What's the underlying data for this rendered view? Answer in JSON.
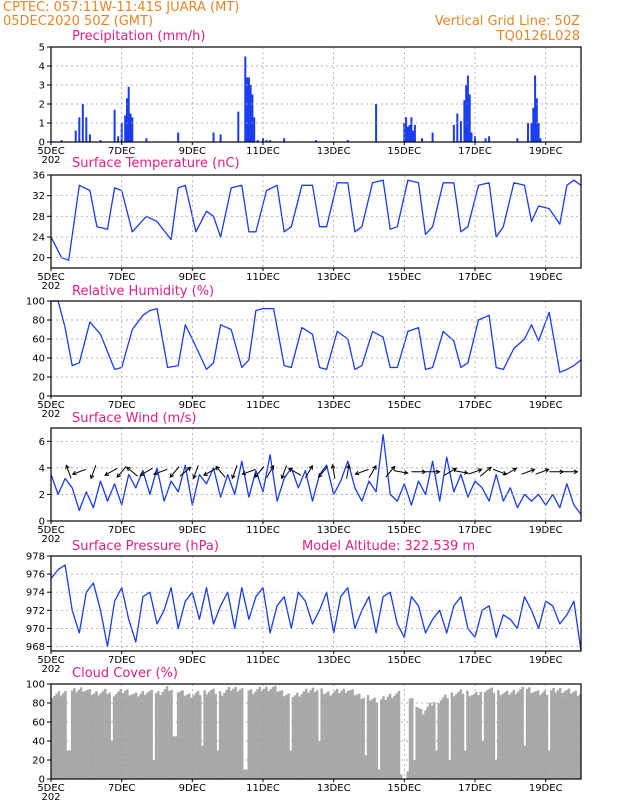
{
  "header": {
    "line1": "CPTEC:  057:11W-11:41S  JUARA (MT)",
    "line2": "05DEC2020 50Z (GMT)",
    "right1": "Vertical Grid Line: 50Z",
    "right2": "TQ0126L028"
  },
  "colors": {
    "header": "#e8862a",
    "title": "#e0208a",
    "series": "#1a3cf0",
    "cloud": "#a9a9a9",
    "grid": "#9a9a9a"
  },
  "x_axis": {
    "start_day": 5,
    "end_day": 20,
    "tick_labels": [
      "5DEC",
      "7DEC",
      "9DEC",
      "11DEC",
      "13DEC",
      "15DEC",
      "17DEC",
      "19DEC"
    ],
    "tick_days": [
      5,
      7,
      9,
      11,
      13,
      15,
      17,
      19
    ],
    "first_tick_sub": "202"
  },
  "chart_data": [
    {
      "name": "precip",
      "type": "bar",
      "title": "Precipitation (mm/h)",
      "ylim": [
        0,
        5
      ],
      "yticks": [
        "0",
        "1",
        "2",
        "3",
        "4",
        "5"
      ],
      "x": [
        5.3,
        5.7,
        5.8,
        5.9,
        6.0,
        6.1,
        6.4,
        6.8,
        6.9,
        7.0,
        7.1,
        7.15,
        7.2,
        7.25,
        7.3,
        7.7,
        8.6,
        9.6,
        9.8,
        10.3,
        10.5,
        10.55,
        10.6,
        10.65,
        10.7,
        10.75,
        10.85,
        11.0,
        11.1,
        11.2,
        11.6,
        12.5,
        13.4,
        14.2,
        15.0,
        15.05,
        15.1,
        15.15,
        15.2,
        15.25,
        15.3,
        15.5,
        15.8,
        16.4,
        16.5,
        16.6,
        16.7,
        16.75,
        16.8,
        16.85,
        16.9,
        17.0,
        17.3,
        17.4,
        18.2,
        18.5,
        18.6,
        18.65,
        18.7,
        18.75,
        18.8,
        18.85
      ],
      "values": [
        0.1,
        0.6,
        1.3,
        2.0,
        1.3,
        0.4,
        0.1,
        1.7,
        0.3,
        1.0,
        1.4,
        2.3,
        2.9,
        1.5,
        1.3,
        0.2,
        0.5,
        0.5,
        0.4,
        1.6,
        4.5,
        3.4,
        3.4,
        3.0,
        2.5,
        1.3,
        0.1,
        0.2,
        0.1,
        0.1,
        0.2,
        0.1,
        0.1,
        2.0,
        1.0,
        1.3,
        0.8,
        0.9,
        1.3,
        0.6,
        0.9,
        0.2,
        0.5,
        0.9,
        1.5,
        1.1,
        2.2,
        3.0,
        3.5,
        2.5,
        0.5,
        0.3,
        0.2,
        0.3,
        0.2,
        1.0,
        1.0,
        1.8,
        3.5,
        2.3,
        1.0,
        0.2
      ]
    },
    {
      "name": "temp",
      "type": "line",
      "title": "Surface Temperature (nC)",
      "ylim": [
        18,
        36
      ],
      "yticks": [
        "20",
        "24",
        "28",
        "32",
        "36"
      ],
      "x": [
        5.0,
        5.3,
        5.5,
        5.8,
        6.1,
        6.3,
        6.6,
        6.8,
        7.0,
        7.3,
        7.7,
        8.0,
        8.4,
        8.6,
        8.8,
        9.1,
        9.4,
        9.6,
        9.8,
        10.1,
        10.4,
        10.6,
        10.8,
        11.1,
        11.4,
        11.6,
        11.8,
        12.1,
        12.4,
        12.6,
        12.8,
        13.1,
        13.4,
        13.6,
        13.8,
        14.1,
        14.4,
        14.6,
        14.8,
        15.1,
        15.4,
        15.6,
        15.8,
        16.1,
        16.4,
        16.6,
        16.8,
        17.1,
        17.4,
        17.6,
        17.8,
        18.1,
        18.4,
        18.6,
        18.8,
        19.1,
        19.4,
        19.6,
        19.8,
        20.0
      ],
      "values": [
        24,
        20,
        19.5,
        34,
        33,
        26,
        25.5,
        33.5,
        33,
        25,
        28,
        27,
        23.5,
        33.5,
        34,
        25,
        29,
        28,
        24,
        33.5,
        34,
        25,
        25,
        33,
        34,
        25,
        26,
        34,
        34,
        26,
        26,
        34.5,
        34.5,
        25,
        26,
        34.5,
        35,
        25.5,
        26,
        35,
        34.5,
        24.5,
        26,
        34.5,
        34.5,
        25,
        26,
        34,
        34.5,
        24,
        26,
        34.5,
        34,
        27,
        30,
        29.5,
        26.5,
        34,
        35,
        34
      ]
    },
    {
      "name": "rh",
      "type": "line",
      "title": "Relative Humidity (%)",
      "ylim": [
        0,
        100
      ],
      "yticks": [
        "0",
        "20",
        "40",
        "60",
        "80",
        "100"
      ],
      "x": [
        5.0,
        5.2,
        5.4,
        5.6,
        5.8,
        6.1,
        6.4,
        6.8,
        7.0,
        7.3,
        7.6,
        7.8,
        8.0,
        8.3,
        8.6,
        8.8,
        9.0,
        9.4,
        9.6,
        9.8,
        10.1,
        10.4,
        10.6,
        10.8,
        11.0,
        11.3,
        11.6,
        11.8,
        12.1,
        12.4,
        12.6,
        12.8,
        13.1,
        13.4,
        13.6,
        13.8,
        14.1,
        14.4,
        14.6,
        14.8,
        15.1,
        15.4,
        15.6,
        15.8,
        16.1,
        16.4,
        16.6,
        16.8,
        17.1,
        17.4,
        17.6,
        17.8,
        18.1,
        18.4,
        18.6,
        18.8,
        19.1,
        19.4,
        19.6,
        19.8,
        20.0
      ],
      "values": [
        100,
        100,
        72,
        32,
        35,
        78,
        65,
        28,
        30,
        70,
        85,
        90,
        92,
        30,
        32,
        75,
        60,
        28,
        35,
        75,
        70,
        30,
        38,
        90,
        92,
        92,
        32,
        30,
        72,
        65,
        30,
        28,
        68,
        60,
        28,
        32,
        68,
        62,
        30,
        30,
        68,
        72,
        28,
        30,
        68,
        58,
        30,
        35,
        80,
        85,
        30,
        28,
        50,
        60,
        75,
        58,
        88,
        25,
        28,
        32,
        38
      ]
    },
    {
      "name": "wind",
      "type": "line",
      "title": "Surface Wind (m/s)",
      "ylim": [
        0,
        7
      ],
      "yticks": [
        "0",
        "2",
        "4",
        "6"
      ],
      "x": [
        5.0,
        5.2,
        5.4,
        5.6,
        5.8,
        6.0,
        6.2,
        6.4,
        6.6,
        6.8,
        7.0,
        7.2,
        7.4,
        7.6,
        7.8,
        8.0,
        8.2,
        8.4,
        8.6,
        8.8,
        9.0,
        9.2,
        9.4,
        9.6,
        9.8,
        10.0,
        10.2,
        10.4,
        10.6,
        10.8,
        11.0,
        11.2,
        11.4,
        11.6,
        11.8,
        12.0,
        12.2,
        12.4,
        12.6,
        12.8,
        13.0,
        13.2,
        13.4,
        13.6,
        13.8,
        14.0,
        14.2,
        14.4,
        14.6,
        14.8,
        15.0,
        15.2,
        15.4,
        15.6,
        15.8,
        16.0,
        16.2,
        16.4,
        16.6,
        16.8,
        17.0,
        17.2,
        17.4,
        17.6,
        17.8,
        18.0,
        18.2,
        18.4,
        18.6,
        18.8,
        19.0,
        19.2,
        19.4,
        19.6,
        19.8,
        20.0
      ],
      "values": [
        3.5,
        2.0,
        3.2,
        2.5,
        0.8,
        2.2,
        1.0,
        3.0,
        1.5,
        2.8,
        1.2,
        3.5,
        2.5,
        3.8,
        2.0,
        4.0,
        1.5,
        3.0,
        2.2,
        4.2,
        1.2,
        3.5,
        2.8,
        4.0,
        1.8,
        3.5,
        2.0,
        4.5,
        1.8,
        3.8,
        2.2,
        5.0,
        1.5,
        3.2,
        4.0,
        2.5,
        3.8,
        1.5,
        3.5,
        4.2,
        2.0,
        3.0,
        4.5,
        2.5,
        1.5,
        3.0,
        2.2,
        6.5,
        2.0,
        1.5,
        2.8,
        1.2,
        3.0,
        2.0,
        4.5,
        1.5,
        4.8,
        2.2,
        3.5,
        1.8,
        3.0,
        2.5,
        1.5,
        3.5,
        1.5,
        2.5,
        1.0,
        2.0,
        1.5,
        2.0,
        1.2,
        2.0,
        1.0,
        2.8,
        1.2,
        0.5
      ],
      "arrows_x": [
        5.5,
        5.8,
        6.2,
        6.7,
        7.0,
        7.3,
        7.7,
        8.1,
        8.5,
        8.8,
        9.1,
        9.5,
        9.8,
        10.2,
        10.6,
        10.9,
        11.2,
        11.6,
        11.9,
        12.3,
        12.7,
        13.0,
        13.4,
        13.8,
        14.1,
        14.6,
        14.9,
        15.4,
        15.8,
        16.3,
        16.6,
        17.0,
        17.3,
        17.7,
        18.0,
        18.5,
        18.9,
        19.3,
        19.7
      ],
      "arrows_deg": [
        110,
        200,
        250,
        210,
        230,
        140,
        210,
        200,
        230,
        40,
        250,
        210,
        130,
        250,
        200,
        230,
        60,
        250,
        150,
        60,
        230,
        100,
        80,
        200,
        60,
        50,
        350,
        0,
        0,
        30,
        350,
        20,
        40,
        340,
        30,
        20,
        20,
        0,
        0
      ]
    },
    {
      "name": "pressure",
      "type": "line",
      "title": "Surface Pressure (hPa)",
      "ylim": [
        967.5,
        978
      ],
      "yticks": [
        "968",
        "970",
        "972",
        "974",
        "976",
        "978"
      ],
      "x": [
        5.0,
        5.2,
        5.4,
        5.6,
        5.8,
        6.0,
        6.2,
        6.4,
        6.6,
        6.8,
        7.0,
        7.2,
        7.4,
        7.6,
        7.8,
        8.0,
        8.2,
        8.4,
        8.6,
        8.8,
        9.0,
        9.2,
        9.4,
        9.6,
        9.8,
        10.0,
        10.2,
        10.4,
        10.6,
        10.8,
        11.0,
        11.2,
        11.4,
        11.6,
        11.8,
        12.0,
        12.2,
        12.4,
        12.6,
        12.8,
        13.0,
        13.2,
        13.4,
        13.6,
        13.8,
        14.0,
        14.2,
        14.4,
        14.6,
        14.8,
        15.0,
        15.2,
        15.4,
        15.6,
        15.8,
        16.0,
        16.2,
        16.4,
        16.6,
        16.8,
        17.0,
        17.2,
        17.4,
        17.6,
        17.8,
        18.0,
        18.2,
        18.4,
        18.6,
        18.8,
        19.0,
        19.2,
        19.4,
        19.6,
        19.8,
        20.0
      ],
      "values": [
        975.5,
        976.5,
        977.0,
        972.0,
        969.5,
        974.0,
        975.0,
        972.0,
        968.0,
        973.0,
        974.5,
        971.0,
        968.5,
        973.5,
        974.0,
        970.5,
        972.0,
        974.5,
        970.0,
        973.0,
        974.0,
        971.0,
        974.5,
        970.5,
        972.5,
        974.0,
        970.0,
        974.5,
        971.0,
        973.5,
        974.5,
        969.5,
        972.5,
        973.5,
        970.0,
        974.0,
        973.0,
        970.5,
        972.0,
        974.0,
        969.5,
        973.5,
        974.5,
        970.0,
        972.0,
        973.5,
        969.5,
        973.5,
        974.0,
        970.5,
        969.0,
        973.5,
        972.5,
        969.5,
        971.0,
        972.0,
        969.5,
        972.5,
        973.5,
        970.0,
        969.0,
        972.0,
        972.5,
        969.0,
        971.5,
        971.0,
        970.0,
        973.5,
        972.0,
        970.0,
        973.0,
        972.5,
        970.5,
        971.5,
        973.0,
        967.5
      ],
      "annotation": "Model Altitude: 322.539  m"
    },
    {
      "name": "cloud",
      "type": "area",
      "title": "Cloud Cover (%)",
      "ylim": [
        0,
        100
      ],
      "yticks": [
        "0",
        "20",
        "40",
        "60",
        "80",
        "100"
      ],
      "x": [
        5.0,
        5.3,
        5.6,
        5.9,
        6.2,
        6.5,
        6.8,
        7.1,
        7.4,
        7.7,
        8.0,
        8.3,
        8.6,
        8.9,
        9.2,
        9.5,
        9.8,
        10.1,
        10.4,
        10.7,
        11.0,
        11.3,
        11.6,
        11.9,
        12.2,
        12.5,
        12.8,
        13.1,
        13.4,
        13.7,
        14.0,
        14.3,
        14.6,
        14.9,
        15.2,
        15.5,
        15.8,
        16.1,
        16.4,
        16.7,
        17.0,
        17.3,
        17.6,
        17.9,
        18.2,
        18.5,
        18.8,
        19.1,
        19.4,
        19.7,
        20.0
      ],
      "values": [
        88,
        90,
        92,
        95,
        90,
        92,
        90,
        93,
        88,
        92,
        90,
        95,
        92,
        88,
        90,
        93,
        90,
        95,
        95,
        92,
        95,
        96,
        90,
        88,
        92,
        95,
        90,
        92,
        94,
        88,
        85,
        82,
        88,
        90,
        85,
        70,
        80,
        85,
        90,
        92,
        88,
        95,
        92,
        90,
        93,
        95,
        90,
        92,
        94,
        92,
        90
      ],
      "dips_x": [
        5.5,
        6.7,
        7.9,
        8.5,
        9.3,
        9.7,
        10.5,
        11.8,
        12.6,
        13.9,
        14.3,
        14.9,
        15.0,
        15.1,
        15.3,
        15.9,
        16.3,
        16.7,
        17.2,
        17.6,
        18.4,
        19.1
      ],
      "dips_y": [
        30,
        40,
        20,
        45,
        35,
        30,
        10,
        30,
        40,
        25,
        10,
        5,
        0,
        8,
        20,
        30,
        20,
        30,
        40,
        20,
        35,
        30
      ]
    }
  ]
}
